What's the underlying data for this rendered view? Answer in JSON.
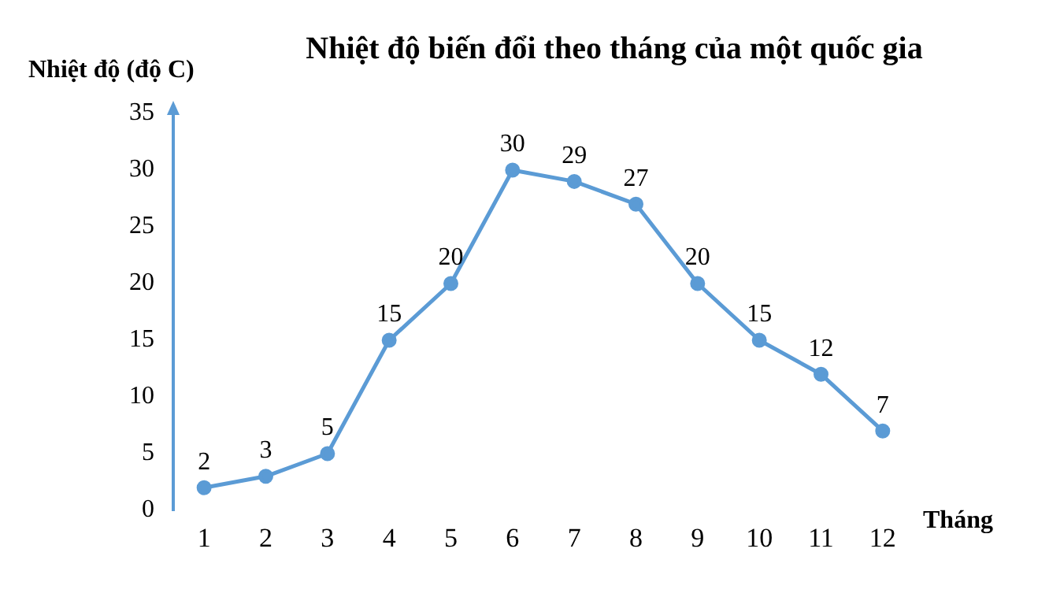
{
  "chart_data": {
    "type": "line",
    "title": "Nhiệt độ biến đổi theo tháng của một quốc gia",
    "xlabel": "Tháng",
    "ylabel": "Nhiệt độ (độ C)",
    "categories": [
      "1",
      "2",
      "3",
      "4",
      "5",
      "6",
      "7",
      "8",
      "9",
      "10",
      "11",
      "12"
    ],
    "series": [
      {
        "color": "#5b9bd5",
        "values": [
          2,
          3,
          5,
          15,
          20,
          30,
          29,
          27,
          20,
          15,
          12,
          7
        ]
      }
    ],
    "ylim": [
      0,
      35
    ],
    "yticks": [
      0,
      5,
      10,
      15,
      20,
      25,
      30,
      35
    ],
    "grid": false,
    "legend": false,
    "marker": "circle",
    "line_style": "solid",
    "data_labels": true
  }
}
